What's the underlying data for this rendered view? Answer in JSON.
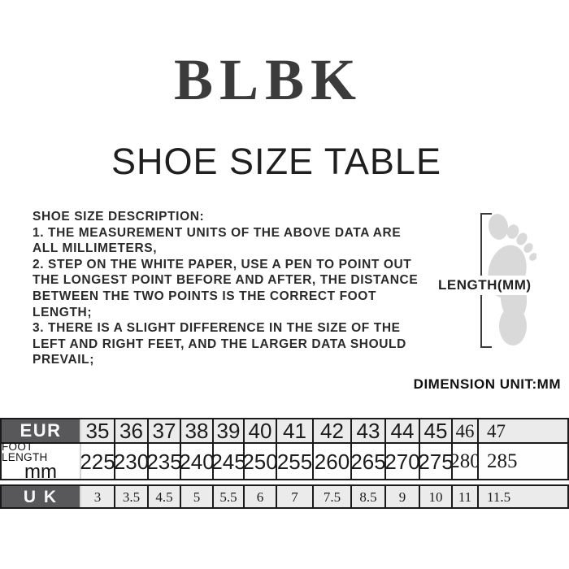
{
  "header": {
    "brand": "BLBK",
    "title": "SHOE SIZE TABLE"
  },
  "description": {
    "text": "SHOE SIZE DESCRIPTION:\n1. THE MEASUREMENT UNITS OF THE ABOVE DATA ARE\nALL MILLIMETERS,\n2. STEP ON THE WHITE PAPER, USE A PEN TO POINT OUT\nTHE LONGEST POINT BEFORE AND AFTER, THE DISTANCE\nBETWEEN THE TWO POINTS IS THE CORRECT FOOT\nLENGTH;\n3. THERE IS A SLIGHT DIFFERENCE IN THE SIZE OF THE\nLEFT AND RIGHT FEET, AND THE LARGER DATA SHOULD\nPREVAIL;"
  },
  "figure": {
    "label": "LENGTH(MM)",
    "icon": "footprint-icon"
  },
  "size_table": {
    "unit_note": "DIMENSION UNIT:MM",
    "rows": [
      {
        "id": "eur",
        "label": "EUR",
        "dark": true,
        "values": [
          "35",
          "36",
          "37",
          "38",
          "39",
          "40",
          "41",
          "42",
          "43",
          "44",
          "45",
          "46",
          "47"
        ],
        "serif_from_index": 11
      },
      {
        "id": "foot",
        "label": "FOOT LENGTH",
        "sublabel": "mm",
        "dark": false,
        "values": [
          "225",
          "230",
          "235",
          "240",
          "245",
          "250",
          "255",
          "260",
          "265",
          "270",
          "275",
          "280",
          "285"
        ],
        "serif_from_index": 11
      },
      {
        "id": "uk",
        "label": "U K",
        "dark": true,
        "values": [
          "3",
          "3.5",
          "4.5",
          "5",
          "5.5",
          "6",
          "7",
          "7.5",
          "8.5",
          "9",
          "10",
          "11",
          "11.5"
        ],
        "serif_from_index": 0
      }
    ]
  },
  "colors": {
    "header_dark": "#58585a",
    "cell_light": "#ebebeb",
    "border": "#1a1a1a",
    "footprint": "#d9d9d9"
  }
}
